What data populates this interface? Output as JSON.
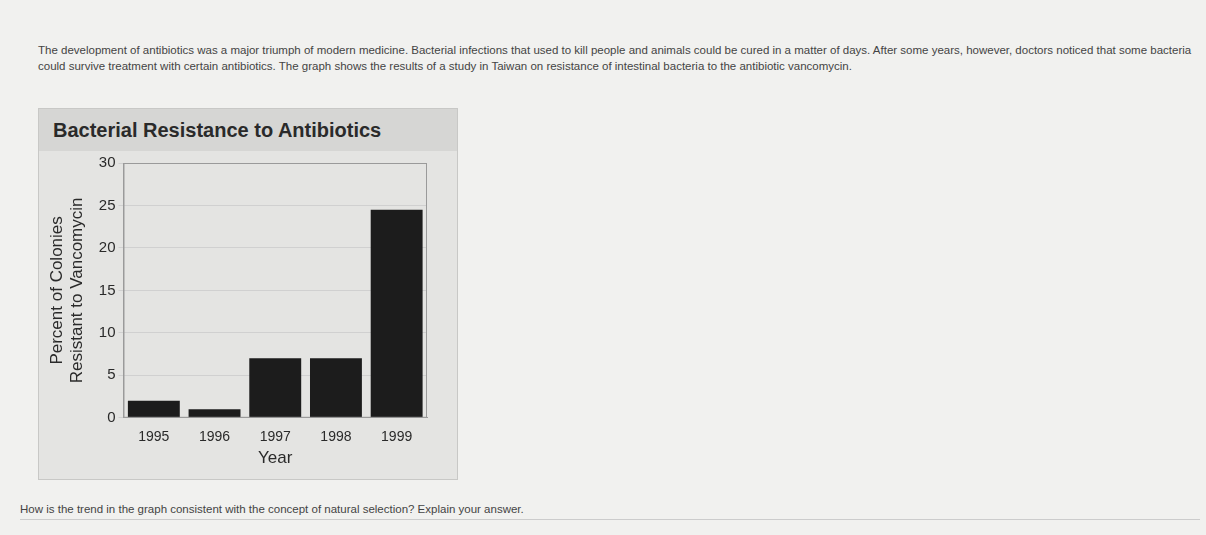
{
  "intro": "The development of antibiotics was a major triumph of modern medicine. Bacterial infections that used to kill people and animals could be cured in a matter of days. After some years, however, doctors noticed that some bacteria could survive treatment with certain antibiotics. The graph shows the results of a study in Taiwan on resistance of intestinal bacteria to the antibiotic vancomycin.",
  "question": "How is the trend in the graph consistent with the concept of natural selection? Explain your answer.",
  "chart_data": {
    "type": "bar",
    "title": "Bacterial Resistance to Antibiotics",
    "x_label": "Year",
    "y_label": [
      "Percent of Colonies",
      "Resistant to Vancomycin"
    ],
    "categories": [
      "1995",
      "1996",
      "1997",
      "1998",
      "1999"
    ],
    "values": [
      2,
      1,
      7,
      7,
      24.5
    ],
    "color": "#1c1c1c",
    "ylim": [
      0,
      30
    ],
    "yticks": [
      0,
      5,
      10,
      15,
      20,
      25,
      30
    ],
    "grid": true
  }
}
